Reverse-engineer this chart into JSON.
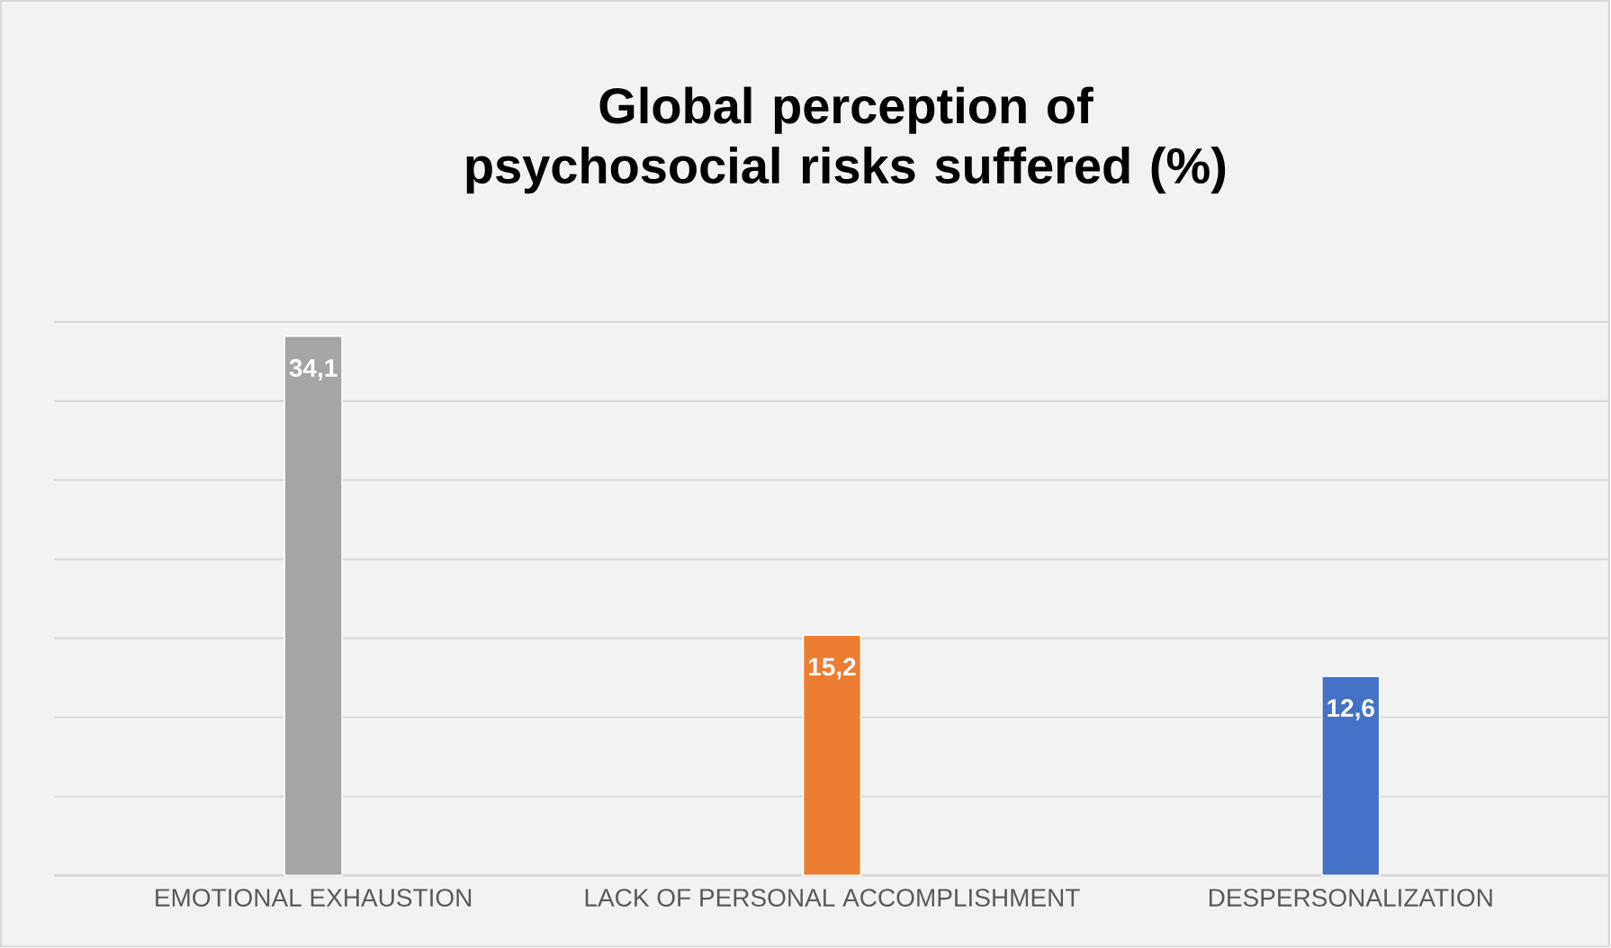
{
  "chart_data": {
    "type": "bar",
    "title": "Global perception of psychosocial risks suffered (%)",
    "categories": [
      "EMOTIONAL EXHAUSTION",
      "LACK OF PERSONAL ACCOMPLISHMENT",
      "DESPERSONALIZATION"
    ],
    "values": [
      34.1,
      15.2,
      12.6
    ],
    "value_labels": [
      "34,1",
      "15,2",
      "12,6"
    ],
    "colors": [
      "#a5a5a5",
      "#ed7d31",
      "#4472c4"
    ],
    "grid": "y",
    "tick_labels": "x"
  }
}
